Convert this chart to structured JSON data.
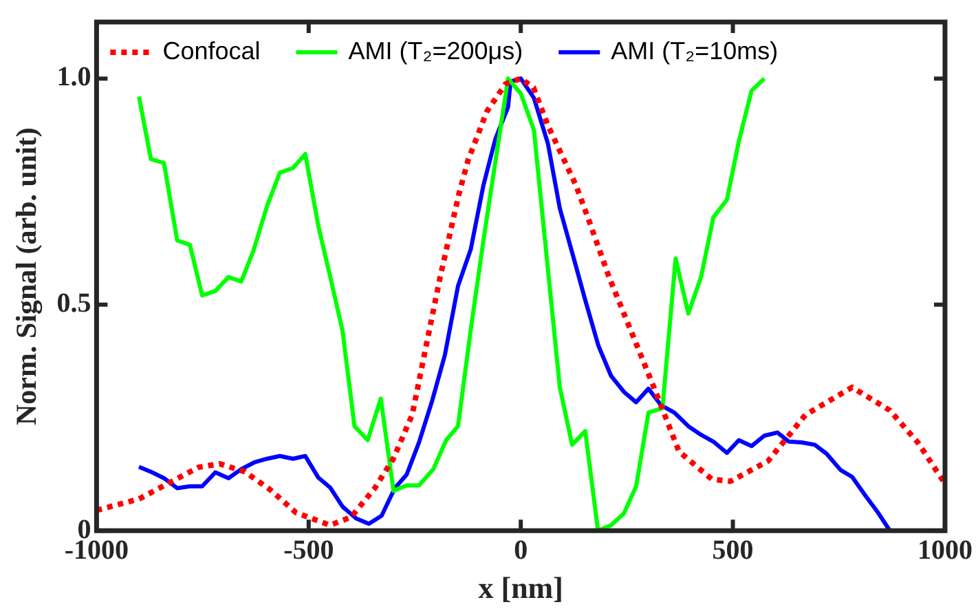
{
  "chart_data": {
    "type": "line",
    "xlabel": "x [nm]",
    "ylabel": "Norm. Signal (arb. unit)",
    "xlim": [
      -1000,
      1000
    ],
    "xticks": [
      -1000,
      -500,
      0,
      500,
      1000
    ],
    "ylim": [
      0,
      1.125
    ],
    "yticks": [
      0,
      0.5,
      {
        "value": 1,
        "label": "1.0"
      }
    ],
    "grid": false,
    "legend": "top",
    "marker": "none",
    "series": [
      {
        "name": "Confocal",
        "color": "#ff0000",
        "line_style": "dotted",
        "x": [
          -1000,
          -900,
          -820,
          -760,
          -710,
          -650,
          -590,
          -530,
          -450,
          -400,
          -344,
          -300,
          -256,
          -223,
          -190,
          -146,
          -124,
          -80,
          -36,
          0,
          30,
          64,
          97,
          130,
          163,
          208,
          274,
          318,
          373,
          450,
          494,
          583,
          671,
          781,
          870,
          936,
          1000
        ],
        "values": [
          0.045,
          0.07,
          0.11,
          0.14,
          0.148,
          0.13,
          0.09,
          0.04,
          0.012,
          0.03,
          0.094,
          0.16,
          0.256,
          0.409,
          0.561,
          0.744,
          0.82,
          0.927,
          0.988,
          1.0,
          0.98,
          0.896,
          0.83,
          0.764,
          0.68,
          0.561,
          0.409,
          0.307,
          0.175,
          0.114,
          0.109,
          0.154,
          0.256,
          0.317,
          0.266,
          0.195,
          0.104
        ]
      },
      {
        "name": "AMI (T₂=200μs)",
        "color": "#00ff00",
        "line_style": "solid",
        "x": [
          -900,
          -872,
          -841,
          -810,
          -780,
          -751,
          -720,
          -689,
          -659,
          -631,
          -598,
          -568,
          -537,
          -508,
          -477,
          -449,
          -420,
          -392,
          -361,
          -330,
          -300,
          -269,
          -240,
          -206,
          -176,
          -148,
          -118,
          -88,
          -60,
          -30,
          0,
          31,
          92,
          121,
          152,
          182,
          213,
          243,
          272,
          301,
          334,
          365,
          395,
          425,
          454,
          486,
          514,
          544,
          574
        ],
        "values": [
          0.96,
          0.822,
          0.813,
          0.642,
          0.632,
          0.52,
          0.53,
          0.561,
          0.551,
          0.617,
          0.718,
          0.792,
          0.802,
          0.833,
          0.673,
          0.561,
          0.441,
          0.231,
          0.2,
          0.292,
          0.088,
          0.1,
          0.1,
          0.136,
          0.2,
          0.231,
          0.444,
          0.642,
          0.815,
          1.0,
          0.967,
          0.886,
          0.317,
          0.19,
          0.22,
          0,
          0.012,
          0.038,
          0.098,
          0.261,
          0.271,
          0.602,
          0.48,
          0.561,
          0.693,
          0.732,
          0.861,
          0.973,
          1.0
        ]
      },
      {
        "name": "AMI (T₂=10ms)",
        "color": "#0000ff",
        "line_style": "solid",
        "x": [
          -900,
          -869,
          -841,
          -810,
          -780,
          -751,
          -720,
          -689,
          -659,
          -628,
          -598,
          -568,
          -537,
          -508,
          -477,
          -449,
          -420,
          -388,
          -358,
          -328,
          -297,
          -269,
          -240,
          -209,
          -179,
          -148,
          -118,
          -88,
          -60,
          -30,
          -24,
          0,
          31,
          64,
          92,
          125,
          152,
          183,
          213,
          243,
          272,
          301,
          331,
          362,
          395,
          425,
          454,
          486,
          514,
          544,
          574,
          605,
          632,
          662,
          693,
          721,
          754,
          781,
          812,
          842,
          870
        ],
        "values": [
          0.141,
          0.129,
          0.116,
          0.094,
          0.098,
          0.098,
          0.129,
          0.116,
          0.136,
          0.151,
          0.159,
          0.165,
          0.159,
          0.165,
          0.117,
          0.095,
          0.053,
          0.027,
          0.015,
          0.033,
          0.094,
          0.124,
          0.195,
          0.287,
          0.388,
          0.541,
          0.622,
          0.764,
          0.866,
          0.937,
          0.993,
          1.0,
          0.957,
          0.856,
          0.713,
          0.602,
          0.51,
          0.409,
          0.342,
          0.307,
          0.284,
          0.314,
          0.277,
          0.261,
          0.231,
          0.212,
          0.197,
          0.172,
          0.2,
          0.187,
          0.21,
          0.217,
          0.197,
          0.195,
          0.19,
          0.17,
          0.134,
          0.119,
          0.078,
          0.04,
          0
        ]
      }
    ]
  }
}
